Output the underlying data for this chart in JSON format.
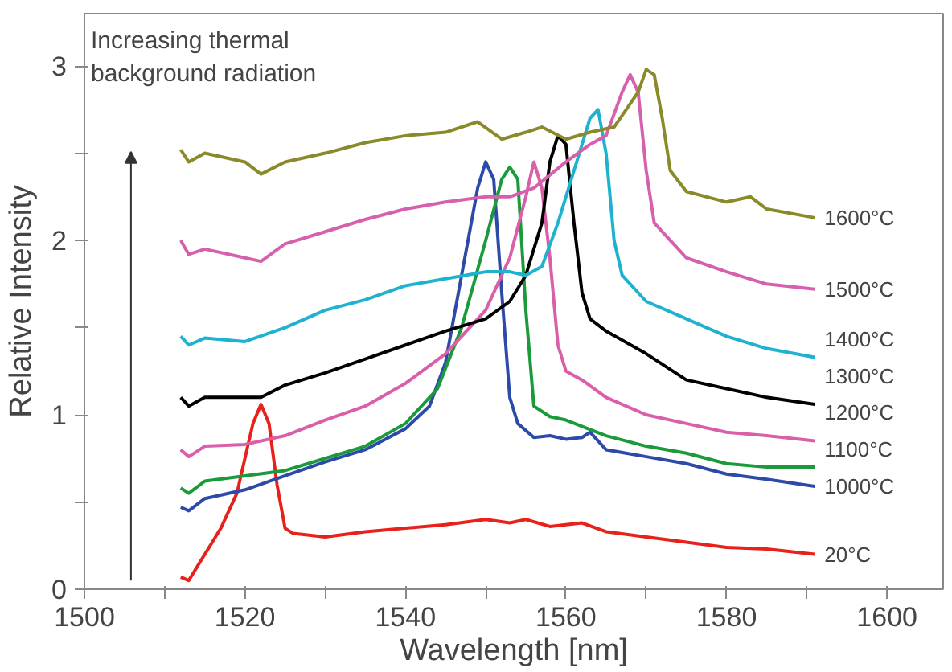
{
  "chart_data": {
    "type": "line",
    "xlabel": "Wavelength [nm]",
    "ylabel": "Relative Intensity",
    "annotations": [
      "Increasing thermal\nbackground radiation"
    ],
    "xlim": [
      1500,
      1607
    ],
    "ylim": [
      0,
      3.3
    ],
    "xticks": [
      1500,
      {
        "value": 1510,
        "label": null
      },
      1520,
      {
        "value": 1530,
        "label": null
      },
      1540,
      {
        "value": 1550,
        "label": null
      },
      1560,
      {
        "value": 1570,
        "label": null
      },
      1580,
      {
        "value": 1590,
        "label": null
      },
      1600
    ],
    "yticks": [
      0,
      {
        "value": 0.5,
        "label": null
      },
      1,
      {
        "value": 1.5,
        "label": null
      },
      2,
      {
        "value": 2.5,
        "label": null
      },
      3
    ],
    "grid": false,
    "marker": "none",
    "line_style": "solid",
    "series": [
      {
        "name": "20°C",
        "color": "#e8211b",
        "x": [
          1512,
          1513,
          1515,
          1517,
          1519,
          1521,
          1522,
          1523,
          1524,
          1525,
          1526,
          1530,
          1535,
          1540,
          1545,
          1550,
          1553,
          1555,
          1558,
          1562,
          1565,
          1570,
          1575,
          1580,
          1585,
          1591
        ],
        "values": [
          0.07,
          0.05,
          0.2,
          0.35,
          0.55,
          0.95,
          1.06,
          0.95,
          0.6,
          0.35,
          0.32,
          0.3,
          0.33,
          0.35,
          0.37,
          0.4,
          0.38,
          0.4,
          0.36,
          0.38,
          0.33,
          0.3,
          0.27,
          0.24,
          0.23,
          0.2
        ]
      },
      {
        "name": "1000°C",
        "color": "#2e4aa8",
        "x": [
          1512,
          1513,
          1515,
          1520,
          1525,
          1530,
          1535,
          1540,
          1543,
          1545,
          1547,
          1549,
          1550,
          1551,
          1552,
          1553,
          1554,
          1556,
          1558,
          1560,
          1562,
          1563,
          1565,
          1570,
          1575,
          1580,
          1585,
          1591
        ],
        "values": [
          0.47,
          0.45,
          0.52,
          0.57,
          0.65,
          0.73,
          0.8,
          0.92,
          1.05,
          1.3,
          1.8,
          2.3,
          2.45,
          2.35,
          1.7,
          1.1,
          0.95,
          0.87,
          0.88,
          0.86,
          0.87,
          0.9,
          0.8,
          0.76,
          0.72,
          0.66,
          0.63,
          0.59
        ]
      },
      {
        "name": "1100°C",
        "color": "#1a9a3a",
        "x": [
          1512,
          1513,
          1515,
          1520,
          1525,
          1530,
          1535,
          1540,
          1544,
          1547,
          1550,
          1552,
          1553,
          1554,
          1555,
          1556,
          1558,
          1560,
          1565,
          1570,
          1575,
          1580,
          1585,
          1591
        ],
        "values": [
          0.58,
          0.55,
          0.62,
          0.65,
          0.68,
          0.75,
          0.82,
          0.95,
          1.15,
          1.5,
          2.0,
          2.35,
          2.42,
          2.35,
          1.6,
          1.05,
          0.99,
          0.97,
          0.88,
          0.82,
          0.78,
          0.72,
          0.7,
          0.7
        ]
      },
      {
        "name": "1200°C",
        "color": "#d95fa8",
        "x": [
          1512,
          1513,
          1515,
          1520,
          1525,
          1530,
          1535,
          1540,
          1545,
          1550,
          1553,
          1555,
          1556,
          1557,
          1558,
          1559,
          1560,
          1562,
          1565,
          1570,
          1575,
          1580,
          1585,
          1591
        ],
        "values": [
          0.8,
          0.76,
          0.82,
          0.83,
          0.88,
          0.97,
          1.05,
          1.18,
          1.35,
          1.6,
          1.9,
          2.25,
          2.45,
          2.3,
          1.9,
          1.4,
          1.25,
          1.2,
          1.1,
          1.0,
          0.95,
          0.9,
          0.88,
          0.85
        ]
      },
      {
        "name": "1300°C",
        "color": "#000000",
        "x": [
          1512,
          1513,
          1515,
          1520,
          1522,
          1525,
          1530,
          1535,
          1540,
          1545,
          1550,
          1553,
          1555,
          1557,
          1558,
          1559,
          1560,
          1561,
          1562,
          1563,
          1565,
          1570,
          1575,
          1580,
          1585,
          1591
        ],
        "values": [
          1.1,
          1.05,
          1.1,
          1.1,
          1.1,
          1.17,
          1.24,
          1.32,
          1.4,
          1.48,
          1.55,
          1.65,
          1.8,
          2.1,
          2.45,
          2.6,
          2.55,
          2.1,
          1.7,
          1.55,
          1.48,
          1.35,
          1.2,
          1.15,
          1.1,
          1.06
        ]
      },
      {
        "name": "1400°C",
        "color": "#1fb2d0",
        "x": [
          1512,
          1513,
          1515,
          1520,
          1525,
          1530,
          1535,
          1540,
          1545,
          1550,
          1553,
          1555,
          1557,
          1559,
          1561,
          1563,
          1564,
          1565,
          1566,
          1567,
          1570,
          1575,
          1580,
          1585,
          1591
        ],
        "values": [
          1.45,
          1.4,
          1.44,
          1.42,
          1.5,
          1.6,
          1.66,
          1.74,
          1.78,
          1.82,
          1.82,
          1.8,
          1.85,
          2.1,
          2.4,
          2.7,
          2.75,
          2.5,
          2.0,
          1.8,
          1.65,
          1.55,
          1.45,
          1.38,
          1.33
        ]
      },
      {
        "name": "1500°C",
        "color": "#d660ae",
        "x": [
          1512,
          1513,
          1515,
          1520,
          1522,
          1525,
          1530,
          1535,
          1540,
          1545,
          1550,
          1553,
          1556,
          1560,
          1563,
          1565,
          1567,
          1568,
          1569,
          1570,
          1571,
          1573,
          1575,
          1580,
          1585,
          1591
        ],
        "values": [
          2.0,
          1.92,
          1.95,
          1.9,
          1.88,
          1.98,
          2.05,
          2.12,
          2.18,
          2.22,
          2.25,
          2.25,
          2.3,
          2.45,
          2.55,
          2.6,
          2.85,
          2.95,
          2.85,
          2.4,
          2.1,
          2.0,
          1.9,
          1.82,
          1.75,
          1.72
        ]
      },
      {
        "name": "1600°C",
        "color": "#8a8a2a",
        "x": [
          1512,
          1513,
          1515,
          1520,
          1522,
          1525,
          1530,
          1535,
          1540,
          1545,
          1549,
          1552,
          1555,
          1557,
          1560,
          1563,
          1566,
          1569,
          1570,
          1571,
          1572,
          1573,
          1575,
          1580,
          1583,
          1585,
          1591
        ],
        "values": [
          2.52,
          2.45,
          2.5,
          2.45,
          2.38,
          2.45,
          2.5,
          2.56,
          2.6,
          2.62,
          2.68,
          2.58,
          2.62,
          2.65,
          2.58,
          2.62,
          2.65,
          2.85,
          2.98,
          2.95,
          2.7,
          2.4,
          2.28,
          2.22,
          2.25,
          2.18,
          2.13
        ]
      }
    ]
  }
}
